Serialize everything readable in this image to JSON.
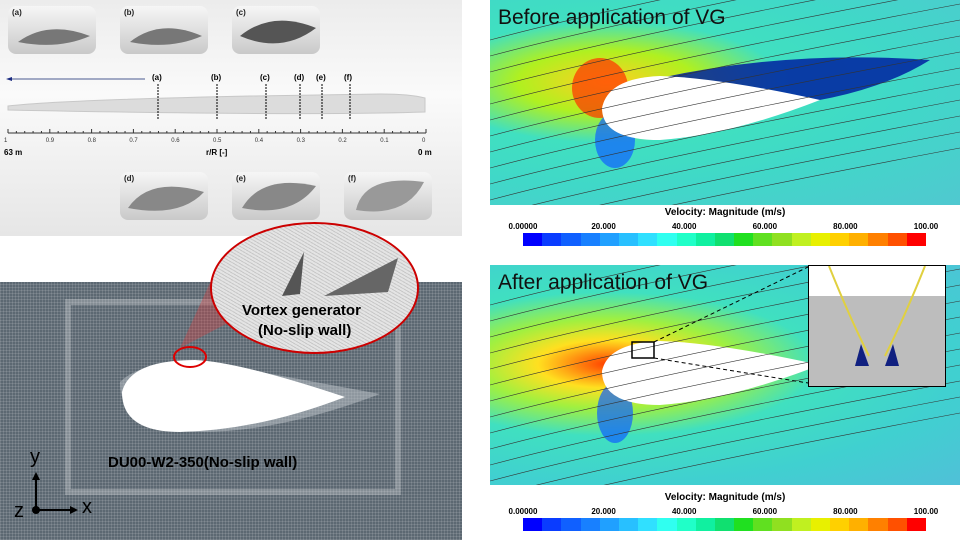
{
  "blade": {
    "thumbnails_top": [
      "(a)",
      "(b)",
      "(c)"
    ],
    "thumbnails_bottom": [
      "(d)",
      "(e)",
      "(f)"
    ],
    "section_markers": [
      "(a)",
      "(b)",
      "(c)",
      "(d)",
      "(e)",
      "(f)"
    ],
    "axis_ticks": [
      "1",
      "0.9",
      "0.8",
      "0.7",
      "0.6",
      "0.5",
      "0.4",
      "0.3",
      "0.2",
      "0.1",
      "0"
    ],
    "axis_label": "r/R [-]",
    "left_end": "63 m",
    "right_end": "0 m"
  },
  "mesh": {
    "vg_label_line1": "Vortex generator",
    "vg_label_line2": "(No-slip wall)",
    "airfoil_label": "DU00-W2-350(No-slip wall)",
    "axis_y": "y",
    "axis_x": "x",
    "axis_z": "z"
  },
  "before": {
    "title": "Before application  of VG"
  },
  "after": {
    "title": "After application  of VG"
  },
  "colorbar": {
    "title": "Velocity: Magnitude (m/s)",
    "ticks": [
      "0.00000",
      "20.000",
      "40.000",
      "60.000",
      "80.000",
      "100.00"
    ],
    "colors": [
      "#0000ff",
      "#0a3cff",
      "#1060ff",
      "#1880ff",
      "#20a0ff",
      "#28c0ff",
      "#30e0ff",
      "#30fff0",
      "#20ffc8",
      "#10f0a0",
      "#10e070",
      "#20e020",
      "#60e020",
      "#90e020",
      "#c0f020",
      "#e8f000",
      "#ffd000",
      "#ffb000",
      "#ff8000",
      "#ff5000",
      "#ff0000"
    ]
  }
}
